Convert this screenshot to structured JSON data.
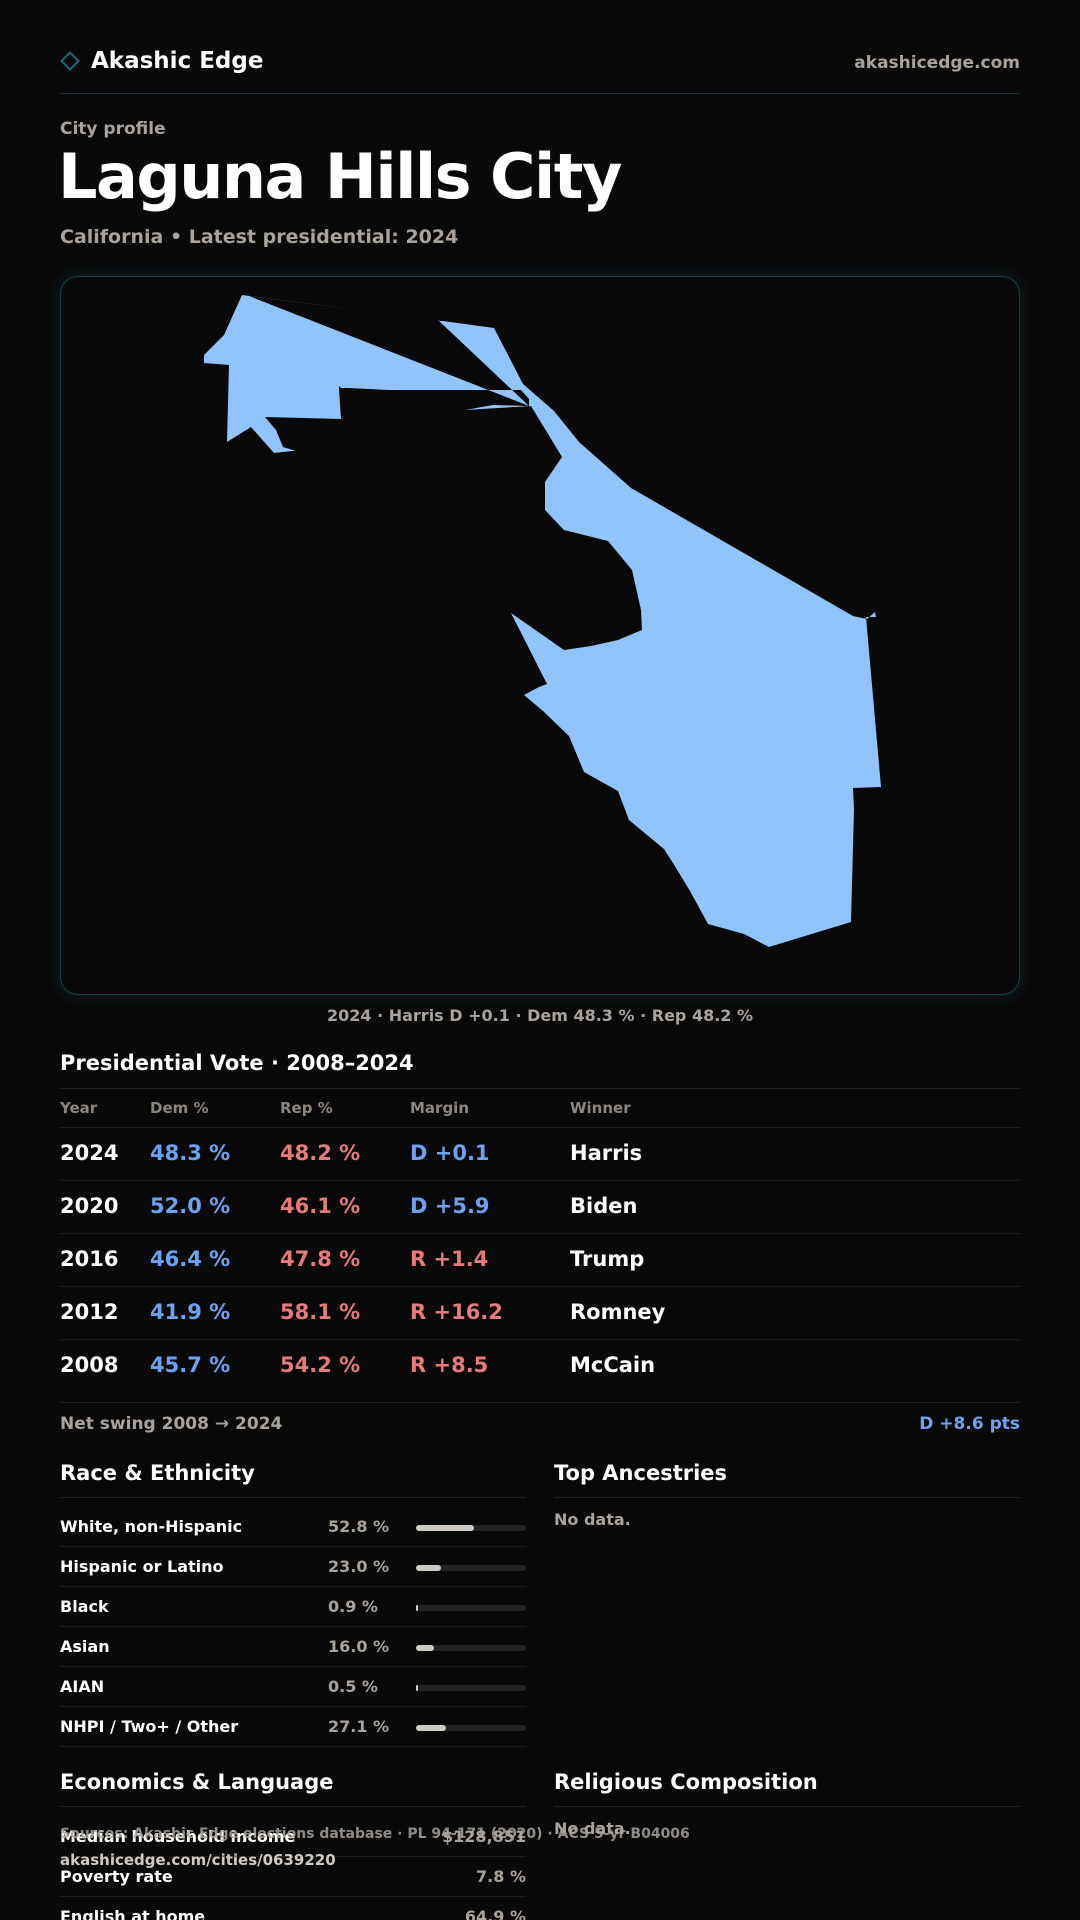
{
  "header": {
    "brand": "Akashic Edge",
    "site": "akashicedge.com"
  },
  "page": {
    "eyebrow": "City profile",
    "title": "Laguna Hills City",
    "subtitle": "California • Latest presidential: 2024"
  },
  "map": {
    "fill_color": "#91c3fc",
    "caption": "2024 · Harris D +0.1 · Dem 48.3 % · Rep 48.2 %"
  },
  "vote": {
    "title": "Presidential Vote · 2008–2024",
    "columns": [
      "Year",
      "Dem %",
      "Rep %",
      "Margin",
      "Winner"
    ],
    "rows": [
      {
        "year": "2024",
        "dem": "48.3 %",
        "rep": "48.2 %",
        "margin": "D +0.1",
        "party": "D",
        "winner": "Harris"
      },
      {
        "year": "2020",
        "dem": "52.0 %",
        "rep": "46.1 %",
        "margin": "D +5.9",
        "party": "D",
        "winner": "Biden"
      },
      {
        "year": "2016",
        "dem": "46.4 %",
        "rep": "47.8 %",
        "margin": "R +1.4",
        "party": "R",
        "winner": "Trump"
      },
      {
        "year": "2012",
        "dem": "41.9 %",
        "rep": "58.1 %",
        "margin": "R +16.2",
        "party": "R",
        "winner": "Romney"
      },
      {
        "year": "2008",
        "dem": "45.7 %",
        "rep": "54.2 %",
        "margin": "R +8.5",
        "party": "R",
        "winner": "McCain"
      }
    ],
    "swing_label": "Net swing 2008 → 2024",
    "swing_value": "D +8.6 pts"
  },
  "race": {
    "title": "Race & Ethnicity",
    "rows": [
      {
        "label": "White, non-Hispanic",
        "pct": "52.8 %",
        "value": 52.8
      },
      {
        "label": "Hispanic or Latino",
        "pct": "23.0 %",
        "value": 23.0
      },
      {
        "label": "Black",
        "pct": "0.9 %",
        "value": 0.9
      },
      {
        "label": "Asian",
        "pct": "16.0 %",
        "value": 16.0
      },
      {
        "label": "AIAN",
        "pct": "0.5 %",
        "value": 0.5
      },
      {
        "label": "NHPI / Two+ / Other",
        "pct": "27.1 %",
        "value": 27.1
      }
    ]
  },
  "ancestries": {
    "title": "Top Ancestries",
    "empty": "No data."
  },
  "economics": {
    "title": "Economics & Language",
    "rows": [
      {
        "label": "Median household income",
        "value": "$128,851"
      },
      {
        "label": "Poverty rate",
        "value": "7.8 %"
      },
      {
        "label": "English at home",
        "value": "64.9 %"
      }
    ]
  },
  "religion": {
    "title": "Religious Composition",
    "empty": "No data."
  },
  "footer": {
    "source": "Sources: Akashic Edge elections database · PL 94-171 (2020) · ACS 5-yr B04006",
    "url": "akashicedge.com/cities/0639220"
  }
}
